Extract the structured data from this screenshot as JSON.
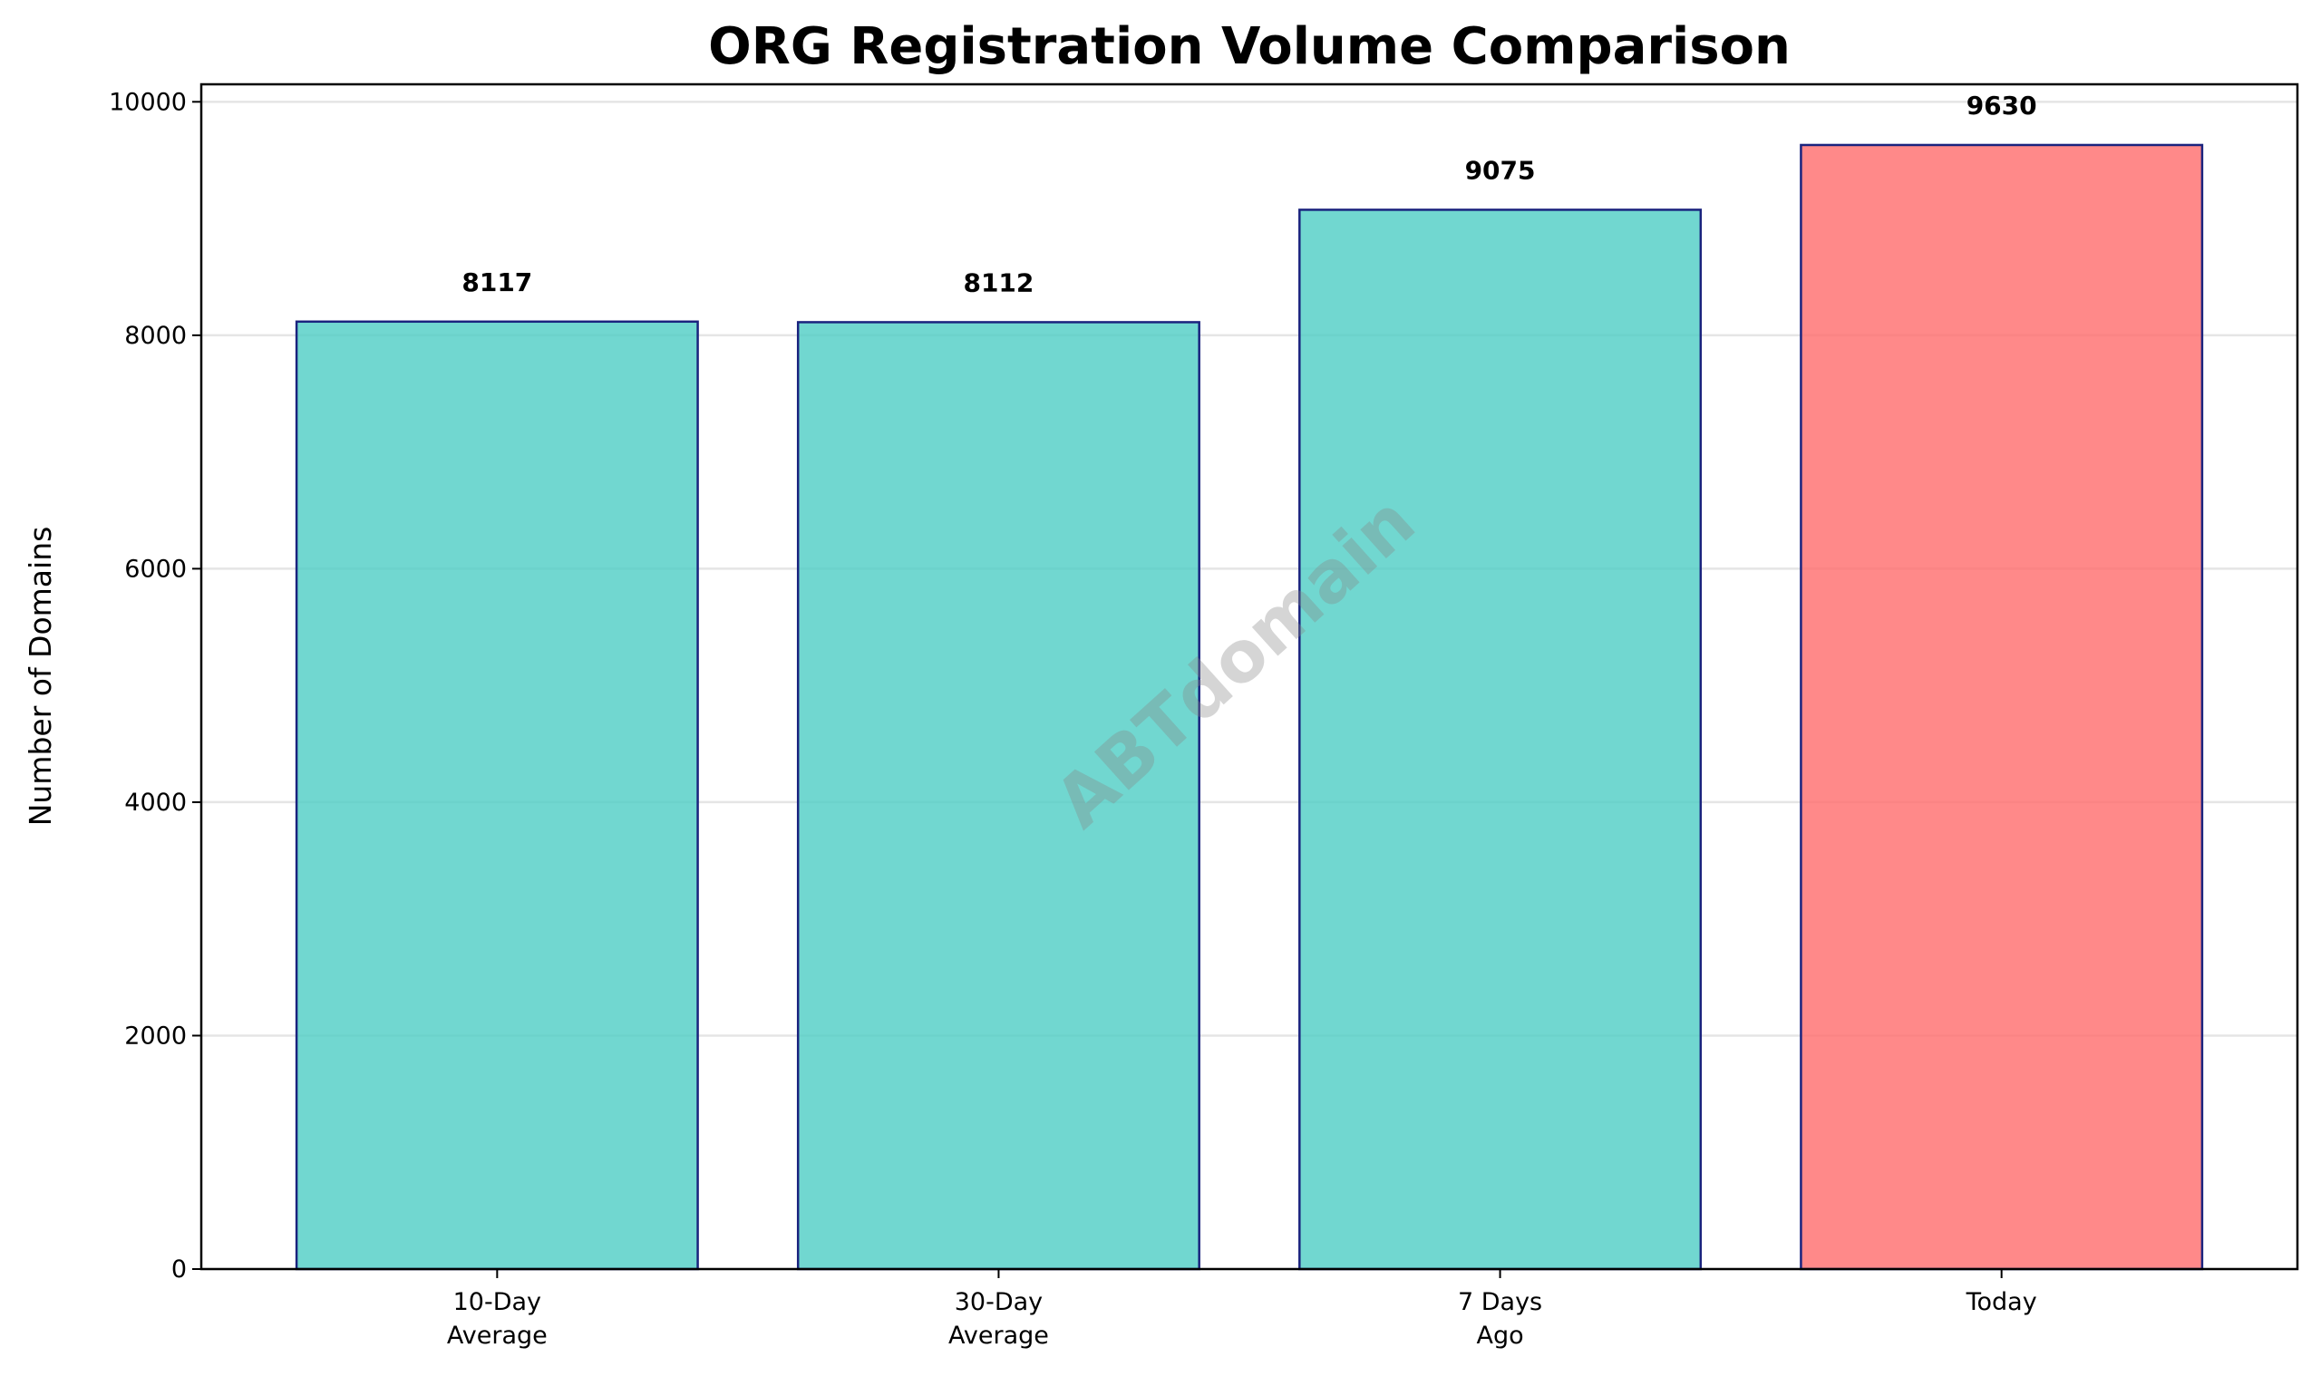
{
  "chart_data": {
    "type": "bar",
    "title": "ORG Registration Volume Comparison",
    "xlabel": "",
    "ylabel": "Number of Domains",
    "categories": [
      [
        "10-Day",
        "Average"
      ],
      [
        "30-Day",
        "Average"
      ],
      [
        "7 Days",
        "Ago"
      ],
      [
        "Today"
      ]
    ],
    "values": [
      8117,
      8112,
      9075,
      9630
    ],
    "value_labels": [
      "8117",
      "8112",
      "9075",
      "9630"
    ],
    "colors": [
      "#4ecdc4",
      "#4ecdc4",
      "#4ecdc4",
      "#ff6b6b"
    ],
    "edge_color": "#1a237e",
    "ylim": [
      0,
      10150
    ],
    "yticks": [
      0,
      2000,
      4000,
      6000,
      8000,
      10000
    ],
    "ytick_labels": [
      "0",
      "2000",
      "4000",
      "6000",
      "8000",
      "10000"
    ],
    "grid": "y",
    "watermark": "ABTdomain"
  }
}
